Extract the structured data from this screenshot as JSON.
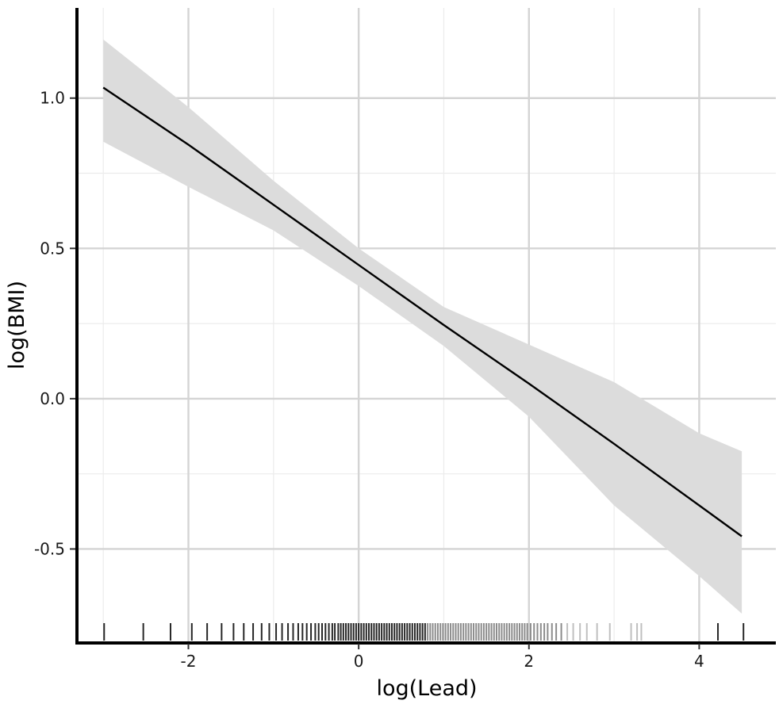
{
  "chart_data": {
    "type": "line",
    "title": "",
    "xlabel": "log(Lead)",
    "ylabel": "log(BMI)",
    "xlim": [
      -3.3,
      4.9
    ],
    "ylim": [
      -0.81,
      1.3
    ],
    "x_ticks": [
      {
        "value": -2,
        "label": "-2"
      },
      {
        "value": 0,
        "label": "0"
      },
      {
        "value": 2,
        "label": "2"
      },
      {
        "value": 4,
        "label": "4"
      }
    ],
    "y_ticks": [
      {
        "value": -0.5,
        "label": "-0.5"
      },
      {
        "value": 0.0,
        "label": "0.0"
      },
      {
        "value": 0.5,
        "label": "0.5"
      },
      {
        "value": 1.0,
        "label": "1.0"
      }
    ],
    "x_minor_gridlines": [
      -3,
      -1,
      1,
      3
    ],
    "y_minor_gridlines": [
      -0.25,
      0.25,
      0.75
    ],
    "grid": true,
    "series": [
      {
        "type": "line",
        "color": "#000000",
        "x": [
          -3.0,
          -2.0,
          -1.0,
          0.0,
          1.0,
          2.0,
          3.0,
          4.0,
          4.5
        ],
        "y": [
          1.035,
          0.845,
          0.645,
          0.445,
          0.245,
          0.05,
          -0.15,
          -0.355,
          -0.458
        ]
      }
    ],
    "confidence_band": {
      "color": "#dcdcdc",
      "x": [
        -3.0,
        -2.0,
        -1.0,
        0.0,
        1.0,
        2.0,
        3.0,
        4.0,
        4.5
      ],
      "upper": [
        1.195,
        0.97,
        0.725,
        0.5,
        0.305,
        0.18,
        0.055,
        -0.115,
        -0.175
      ],
      "lower": [
        0.855,
        0.705,
        0.56,
        0.375,
        0.175,
        -0.06,
        -0.355,
        -0.59,
        -0.715
      ]
    },
    "rug": {
      "color": "#000000",
      "x": [
        -2.99,
        -2.53,
        -2.21,
        -1.96,
        -1.78,
        -1.61,
        -1.47,
        -1.35,
        -1.24,
        -1.14,
        -1.05,
        -0.97,
        -0.9,
        -0.83,
        -0.77,
        -0.71,
        -0.66,
        -0.61,
        -0.56,
        -0.51,
        -0.47,
        -0.43,
        -0.39,
        -0.35,
        -0.31,
        -0.28,
        -0.24,
        -0.21,
        -0.18,
        -0.15,
        -0.12,
        -0.09,
        -0.06,
        -0.03,
        0.0,
        0.03,
        0.06,
        0.09,
        0.12,
        0.15,
        0.18,
        0.21,
        0.24,
        0.27,
        0.3,
        0.33,
        0.36,
        0.39,
        0.42,
        0.45,
        0.48,
        0.51,
        0.54,
        0.57,
        0.6,
        0.63,
        0.66,
        0.69,
        0.72,
        0.75,
        0.78,
        0.81,
        0.84,
        0.87,
        0.9,
        0.93,
        0.96,
        0.99,
        1.02,
        1.05,
        1.08,
        1.11,
        1.14,
        1.17,
        1.2,
        1.23,
        1.26,
        1.29,
        1.32,
        1.35,
        1.38,
        1.41,
        1.44,
        1.47,
        1.5,
        1.53,
        1.56,
        1.59,
        1.62,
        1.65,
        1.68,
        1.71,
        1.74,
        1.77,
        1.8,
        1.83,
        1.86,
        1.89,
        1.92,
        1.95,
        1.98,
        2.02,
        2.06,
        2.1,
        2.14,
        2.18,
        2.22,
        2.27,
        2.32,
        2.38,
        2.45,
        2.52,
        2.6,
        2.68,
        2.8,
        2.95,
        3.2,
        3.27,
        3.32,
        4.22,
        4.52
      ]
    }
  }
}
